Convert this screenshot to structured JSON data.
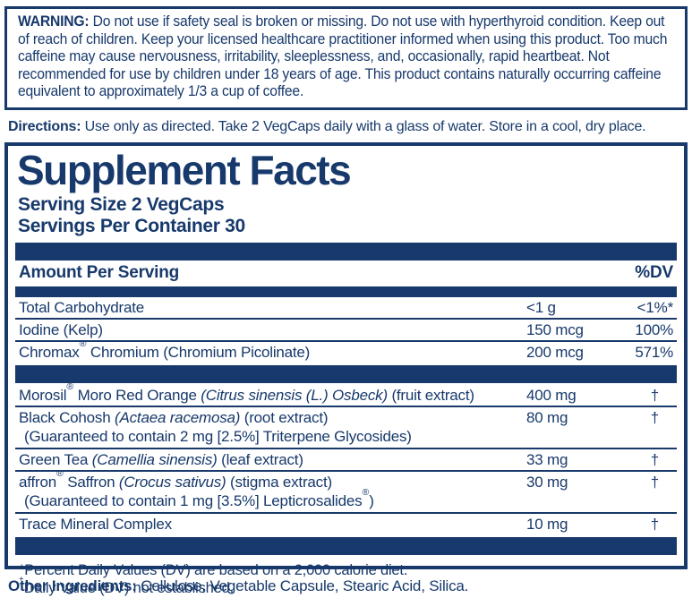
{
  "colors": {
    "navy": "#17396b"
  },
  "warning": {
    "label": "WARNING:",
    "text": "Do not use if safety seal is broken or missing. Do not use with hyperthyroid condition. Keep out of reach of children. Keep your licensed healthcare practitioner informed when using this product. Too much caffeine may cause nervousness, irritability, sleeplessness, and, occasionally, rapid heartbeat. Not recommended for use by children under 18 years of age. This product contains naturally occurring caffeine equivalent to approximately 1/3 a cup of coffee."
  },
  "directions": {
    "label": "Directions:",
    "text": "Use only as directed. Take 2 VegCaps daily with a glass of water. Store in a cool, dry place."
  },
  "facts": {
    "title": "Supplement Facts",
    "serving_size": "Serving Size 2 VegCaps",
    "servings_per_container": "Servings Per Container 30",
    "header": {
      "amount_per_serving": "Amount Per Serving",
      "dv": "%DV"
    },
    "rows": [
      {
        "name": [
          {
            "t": "Total Carbohydrate"
          }
        ],
        "amount": "<1 g",
        "dv": "<1%*"
      },
      {
        "name": [
          {
            "t": "Iodine (Kelp)"
          }
        ],
        "amount": "150 mcg",
        "dv": "100%"
      },
      {
        "name": [
          {
            "t": "Chromax"
          },
          {
            "t": "®",
            "s": "sup"
          },
          {
            "t": " Chromium (Chromium Picolinate)"
          }
        ],
        "amount": "200 mcg",
        "dv": "571%",
        "bar_after": true
      },
      {
        "name": [
          {
            "t": "Morosil"
          },
          {
            "t": "®",
            "s": "sup"
          },
          {
            "t": " Moro Red Orange "
          },
          {
            "t": "(Citrus sinensis (L.) Osbeck)",
            "s": "i"
          },
          {
            "t": " (fruit extract)"
          }
        ],
        "amount": "400 mg",
        "dv": "†"
      },
      {
        "name": [
          {
            "t": "Black Cohosh "
          },
          {
            "t": "(Actaea racemosa)",
            "s": "i"
          },
          {
            "t": " (root extract)"
          }
        ],
        "amount": "80 mg",
        "dv": "†",
        "sub": [
          {
            "t": "(Guaranteed to contain 2 mg [2.5%] Triterpene Glycosides)"
          }
        ]
      },
      {
        "name": [
          {
            "t": "Green Tea "
          },
          {
            "t": "(Camellia sinensis)",
            "s": "i"
          },
          {
            "t": " (leaf extract)"
          }
        ],
        "amount": "33 mg",
        "dv": "†"
      },
      {
        "name": [
          {
            "t": "affron"
          },
          {
            "t": "®",
            "s": "sup"
          },
          {
            "t": " Saffron "
          },
          {
            "t": "(Crocus sativus)",
            "s": "i"
          },
          {
            "t": " (stigma extract)"
          }
        ],
        "amount": "30 mg",
        "dv": "†",
        "sub": [
          {
            "t": "(Guaranteed to contain 1 mg [3.5%] Lepticrosalides"
          },
          {
            "t": "®",
            "s": "sup"
          },
          {
            "t": ")"
          }
        ]
      },
      {
        "name": [
          {
            "t": "Trace Mineral Complex"
          }
        ],
        "amount": "10 mg",
        "dv": "†",
        "bar_after": true
      }
    ],
    "footnotes": [
      [
        {
          "t": "*Percent Daily Values (DV) are based on a 2,000 calorie diet."
        }
      ],
      [
        {
          "t": "†",
          "s": "sup"
        },
        {
          "t": "Daily Value (DV) not established."
        }
      ]
    ]
  },
  "other_ingredients": {
    "label": "Other Ingredients:",
    "text": "Cellulose, Vegetable Capsule, Stearic Acid, Silica."
  }
}
